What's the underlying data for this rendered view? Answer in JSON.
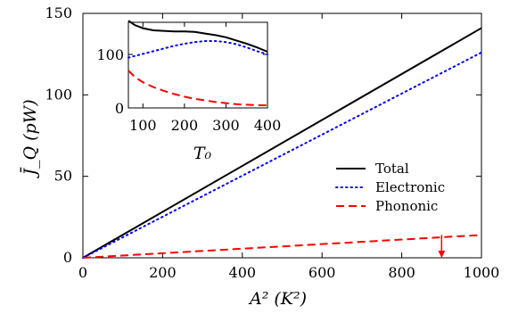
{
  "chart_data": [
    {
      "type": "line",
      "xlabel": "A²  (K²)",
      "ylabel": "J̄_Q  (pW)",
      "xlim": [
        0,
        1000
      ],
      "ylim": [
        0,
        150
      ],
      "x_ticks": [
        "0",
        "200",
        "400",
        "600",
        "800",
        "1000"
      ],
      "y_ticks": [
        "0",
        "50",
        "100",
        "150"
      ],
      "legend_placement": "right-middle",
      "x": [
        0,
        1000
      ],
      "series": [
        {
          "name": "Total",
          "style": "solid",
          "color": "#000000",
          "values": [
            0,
            141
          ]
        },
        {
          "name": "Electronic",
          "style": "dotted",
          "color": "#0000ff",
          "values": [
            0,
            126
          ]
        },
        {
          "name": "Phononic",
          "style": "dashed",
          "color": "#ff0000",
          "values": [
            0,
            14
          ]
        }
      ],
      "annotation": {
        "type": "arrow",
        "x": 900,
        "y_from": 14,
        "y_to": 0,
        "color": "#ff0000"
      }
    },
    {
      "type": "line",
      "xlabel": "T₀",
      "ylabel": "",
      "xlim": [
        65,
        400
      ],
      "ylim": [
        0,
        160
      ],
      "x_ticks": [
        "100",
        "200",
        "300",
        "400"
      ],
      "y_ticks": [
        "0",
        "100"
      ],
      "x": [
        65,
        80,
        100,
        125,
        150,
        175,
        200,
        225,
        250,
        275,
        300,
        325,
        350,
        375,
        400
      ],
      "series": [
        {
          "name": "Total",
          "style": "solid",
          "color": "#000000",
          "values": [
            163,
            155,
            149,
            145,
            144,
            143,
            143,
            142,
            139,
            136,
            132,
            126,
            120,
            113,
            105
          ]
        },
        {
          "name": "Electronic",
          "style": "dotted",
          "color": "#0000ff",
          "values": [
            94,
            97,
            101,
            106,
            111,
            116,
            120,
            123,
            125,
            125,
            123,
            119,
            113,
            106,
            100
          ]
        },
        {
          "name": "Phononic",
          "style": "dashed",
          "color": "#ff0000",
          "values": [
            70,
            58,
            48,
            39,
            32,
            26,
            21,
            17,
            14,
            11,
            9,
            7,
            6,
            5,
            5
          ]
        }
      ]
    }
  ]
}
